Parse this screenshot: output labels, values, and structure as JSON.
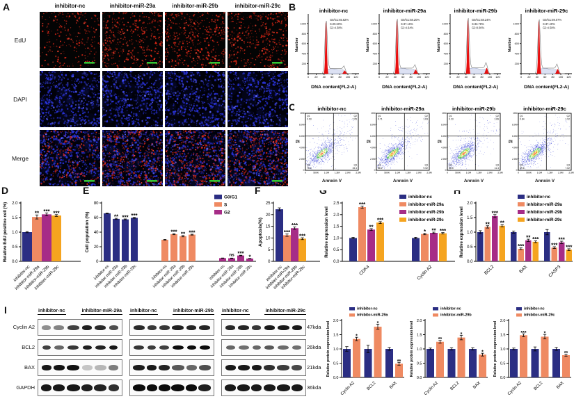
{
  "panels": {
    "a": "A",
    "b": "B",
    "c": "C",
    "d": "D",
    "e": "E",
    "f": "F",
    "g": "G",
    "h": "H",
    "i": "I"
  },
  "colors": {
    "navy": "#2b2e83",
    "salmon": "#ef8a62",
    "magenta": "#a62c87",
    "amber": "#f5a41f",
    "hist_red": "#e80f0f",
    "hist_s_fill": "#dce1f3",
    "edu_red": "#e02716",
    "dapi_blue": "#2a33dd",
    "scalebar_green": "#35c435"
  },
  "panelA": {
    "columns": [
      "inhibitor-nc",
      "inhibitor-miR-29a",
      "inhibitor-miR-29b",
      "inhibitor-miR-29c"
    ],
    "rows": [
      "EdU",
      "DAPI",
      "Merge"
    ],
    "edu_dot_counts": [
      260,
      430,
      480,
      430
    ],
    "dapi_dot_count": 520
  },
  "panelI": {
    "protein_labels": [
      "Cyclin A2",
      "BCL2",
      "BAX",
      "GAPDH"
    ],
    "kda_labels": [
      "47kda",
      "26kda",
      "21kda",
      "36kda"
    ],
    "groups": [
      {
        "nc_label": "inhibitor-nc",
        "treat_label": "inhibitor-miR-29a",
        "bands": [
          [
            0.45,
            0.5,
            0.78,
            0.92,
            0.88,
            0.72
          ],
          [
            0.78,
            0.62,
            0.82,
            0.92,
            0.9,
            0.95
          ],
          [
            0.95,
            0.97,
            0.98,
            0.22,
            0.28,
            0.52
          ],
          [
            0.95,
            0.95,
            0.95,
            0.92,
            0.9,
            0.85
          ]
        ]
      },
      {
        "nc_label": "inhibitor-nc",
        "treat_label": "inhibitor-miR-29b",
        "bands": [
          [
            0.88,
            0.82,
            0.82,
            0.92,
            0.9,
            0.9
          ],
          [
            0.82,
            0.8,
            0.78,
            1,
            1,
            1
          ],
          [
            0.92,
            0.95,
            0.9,
            0.68,
            0.62,
            0.72
          ],
          [
            1,
            1,
            1,
            1,
            1,
            0.92
          ]
        ]
      },
      {
        "nc_label": "inhibitor-nc",
        "treat_label": "inhibitor-miR-29c",
        "bands": [
          [
            0.88,
            0.9,
            0.82,
            0.95,
            0.95,
            0.95
          ],
          [
            0.62,
            0.58,
            0.62,
            0.68,
            0.6,
            0.58
          ],
          [
            0.95,
            0.95,
            0.95,
            0.85,
            0.8,
            0.75
          ],
          [
            0.95,
            0.95,
            0.95,
            0.95,
            0.95,
            0.95
          ]
        ]
      }
    ]
  },
  "chart_data": [
    {
      "id": "B",
      "type": "histogram-set",
      "ylabel": "Number",
      "xlabel": "DNA content(FL2-A)",
      "yticks": [
        0,
        200,
        400,
        600,
        800,
        1000
      ],
      "xticks": [
        0,
        20,
        40,
        60,
        80,
        100,
        120
      ],
      "plots": [
        {
          "title": "inhibitor-nc",
          "stats": [
            "G0/G1:65.82%",
            "S:29.60%",
            "G2:4.38%"
          ],
          "g1_peak": 0.9,
          "s_level": 0.075,
          "g2_peak": 0.055
        },
        {
          "title": "inhibitor-miR-29a",
          "stats": [
            "G0/G1:58.20%",
            "S:37.16%",
            "G2:4.64%"
          ],
          "g1_peak": 0.93,
          "s_level": 0.08,
          "g2_peak": 0.07
        },
        {
          "title": "inhibitor-miR-29b",
          "stats": [
            "G0/G1:58.24%",
            "S:33.78%",
            "G2:8.00%"
          ],
          "g1_peak": 0.94,
          "s_level": 0.085,
          "g2_peak": 0.1
        },
        {
          "title": "inhibitor-miR-29c",
          "stats": [
            "G0/G1:59.07%",
            "S:37.49%",
            "G2:4.58%"
          ],
          "g1_peak": 0.92,
          "s_level": 0.08,
          "g2_peak": 0.08
        }
      ]
    },
    {
      "id": "C",
      "type": "flow-set",
      "xlabel": "Annxin V",
      "ylabel": "PI",
      "ytick_labels": [
        "10M",
        "8.0M",
        "6.0M",
        "4.0M",
        "2.0M",
        "0"
      ],
      "xtick_labels": [
        "0",
        "500K",
        "1.0M",
        "1.5M",
        "2.0M",
        "2.5M"
      ],
      "plots": [
        {
          "title": "inhibitor-nc",
          "q1": "0.93",
          "q2": "7.05",
          "q3": "15.4",
          "q4": "76.4",
          "cloud": 0.34
        },
        {
          "title": "inhibitor-miR-29a",
          "q1": "0.71",
          "q2": "1.63",
          "q3": "9.52",
          "q4": "88.2",
          "cloud": 0.24
        },
        {
          "title": "inhibitor-miR-29b",
          "q1": "0.23",
          "q2": "1.89",
          "q3": "11.4",
          "q4": "86.5",
          "cloud": 0.24
        },
        {
          "title": "inhibitor-miR-29c",
          "q1": "0.84",
          "q2": "1.92",
          "q3": "7.62",
          "q4": "89.6",
          "cloud": 0.26
        }
      ]
    },
    {
      "id": "D",
      "type": "bar",
      "ylabel": "Relative EdU positive cell (%)",
      "ylim": [
        0,
        2.0
      ],
      "ystep": 0.5,
      "decimals": 1,
      "groups": [
        {
          "label": "inhibitor-nc",
          "bars": [
            {
              "v": 1.0,
              "e": 0.02,
              "c": "navy",
              "sig": ""
            }
          ]
        },
        {
          "label": "inhibitor-miR-29a",
          "bars": [
            {
              "v": 1.52,
              "e": 0.07,
              "c": "salmon",
              "sig": "**"
            }
          ]
        },
        {
          "label": "inhibitor-miR-29b",
          "bars": [
            {
              "v": 1.61,
              "e": 0.05,
              "c": "magenta",
              "sig": "***"
            }
          ]
        },
        {
          "label": "inhibitor-miR-29c",
          "bars": [
            {
              "v": 1.57,
              "e": 0.03,
              "c": "amber",
              "sig": "***"
            }
          ]
        }
      ]
    },
    {
      "id": "E",
      "type": "bar",
      "ylabel": "Cell population (%)",
      "ylim": [
        0,
        80
      ],
      "ystep": 20,
      "decimals": 0,
      "legend": [
        {
          "label": "G0/G1",
          "c": "navy"
        },
        {
          "label": "S",
          "c": "salmon"
        },
        {
          "label": "G2",
          "c": "magenta"
        }
      ],
      "groups": [
        {
          "label": "G0/G1",
          "bars": [
            {
              "xlabel": "inhibitor-nc",
              "v": 65.8,
              "e": 0.5,
              "c": "navy",
              "sig": ""
            },
            {
              "xlabel": "inhibitor-miR-29a",
              "v": 58.2,
              "e": 0.8,
              "c": "navy",
              "sig": "**"
            },
            {
              "xlabel": "inhibitor-miR-29b",
              "v": 57.5,
              "e": 0.6,
              "c": "navy",
              "sig": "***"
            },
            {
              "xlabel": "inhibitor-miR-29c",
              "v": 59.6,
              "e": 0.7,
              "c": "navy",
              "sig": "***"
            }
          ]
        },
        {
          "label": "S",
          "bars": [
            {
              "xlabel": "inhibitor-nc",
              "v": 29.6,
              "e": 0.5,
              "c": "salmon",
              "sig": ""
            },
            {
              "xlabel": "inhibitor-miR-29a",
              "v": 37.2,
              "e": 0.7,
              "c": "salmon",
              "sig": "***"
            },
            {
              "xlabel": "inhibitor-miR-29b",
              "v": 34.5,
              "e": 0.9,
              "c": "salmon",
              "sig": "**"
            },
            {
              "xlabel": "inhibitor-miR-29c",
              "v": 36.6,
              "e": 0.6,
              "c": "salmon",
              "sig": "***"
            }
          ]
        },
        {
          "label": "G2",
          "bars": [
            {
              "xlabel": "inhibitor-nc",
              "v": 4.4,
              "e": 0.2,
              "c": "magenta",
              "sig": ""
            },
            {
              "xlabel": "inhibitor-miR-29a",
              "v": 4.2,
              "e": 0.3,
              "c": "magenta",
              "sig": "ns"
            },
            {
              "xlabel": "inhibitor-miR-29b",
              "v": 8.0,
              "e": 0.4,
              "c": "magenta",
              "sig": "***"
            },
            {
              "xlabel": "inhibitor-miR-29c",
              "v": 3.8,
              "e": 0.2,
              "c": "magenta",
              "sig": "*"
            }
          ]
        }
      ]
    },
    {
      "id": "F",
      "type": "bar",
      "ylabel": "Apoptosis(%)",
      "ylim": [
        0,
        25
      ],
      "ystep": 5,
      "decimals": 0,
      "groups": [
        {
          "label": "inhibitor-nc",
          "bars": [
            {
              "v": 22.3,
              "e": 0.6,
              "c": "navy",
              "sig": ""
            }
          ]
        },
        {
          "label": "inhibitor-miR-29a",
          "bars": [
            {
              "v": 11.2,
              "e": 0.5,
              "c": "salmon",
              "sig": "***"
            }
          ]
        },
        {
          "label": "inhibitor-miR-29b",
          "bars": [
            {
              "v": 14.2,
              "e": 0.5,
              "c": "magenta",
              "sig": "***"
            }
          ]
        },
        {
          "label": "inhibitor-miR-29c",
          "bars": [
            {
              "v": 9.7,
              "e": 0.4,
              "c": "amber",
              "sig": "***"
            }
          ]
        }
      ]
    },
    {
      "id": "G",
      "type": "bar",
      "ylabel": "Relative expression level",
      "ylim": [
        0,
        2.5
      ],
      "ystep": 0.5,
      "decimals": 1,
      "legend": [
        {
          "label": "inhibitor-nc",
          "c": "navy"
        },
        {
          "label": "inhibitor-miR-29a",
          "c": "salmon"
        },
        {
          "label": "inhibitor-miR-29b",
          "c": "magenta"
        },
        {
          "label": "inhibitor-miR-29c",
          "c": "amber"
        }
      ],
      "groups": [
        {
          "label": "CDK4",
          "bars": [
            {
              "v": 1.0,
              "e": 0.03,
              "c": "navy",
              "sig": ""
            },
            {
              "v": 2.32,
              "e": 0.05,
              "c": "salmon",
              "sig": "***"
            },
            {
              "v": 1.36,
              "e": 0.04,
              "c": "magenta",
              "sig": "**"
            },
            {
              "v": 1.66,
              "e": 0.04,
              "c": "amber",
              "sig": "***"
            }
          ]
        },
        {
          "label": "Cyclin A2",
          "bars": [
            {
              "v": 1.0,
              "e": 0.03,
              "c": "navy",
              "sig": ""
            },
            {
              "v": 1.17,
              "e": 0.03,
              "c": "salmon",
              "sig": "*"
            },
            {
              "v": 1.22,
              "e": 0.03,
              "c": "magenta",
              "sig": "**"
            },
            {
              "v": 1.2,
              "e": 0.03,
              "c": "amber",
              "sig": "***"
            }
          ]
        }
      ]
    },
    {
      "id": "H",
      "type": "bar",
      "ylabel": "Relative expression level",
      "ylim": [
        0,
        2.0
      ],
      "ystep": 0.5,
      "decimals": 1,
      "legend": [
        {
          "label": "inhibitor-nc",
          "c": "navy"
        },
        {
          "label": "inhibitor-miR-29a",
          "c": "salmon"
        },
        {
          "label": "inhibitor-miR-29b",
          "c": "magenta"
        },
        {
          "label": "inhibitor-miR-29c",
          "c": "amber"
        }
      ],
      "groups": [
        {
          "label": "BCL2",
          "bars": [
            {
              "v": 1.0,
              "e": 0.05,
              "c": "navy",
              "sig": ""
            },
            {
              "v": 1.18,
              "e": 0.04,
              "c": "salmon",
              "sig": "**"
            },
            {
              "v": 1.55,
              "e": 0.05,
              "c": "magenta",
              "sig": "***"
            },
            {
              "v": 1.22,
              "e": 0.04,
              "c": "amber",
              "sig": "**"
            }
          ]
        },
        {
          "label": "BAX",
          "bars": [
            {
              "v": 1.0,
              "e": 0.04,
              "c": "navy",
              "sig": ""
            },
            {
              "v": 0.43,
              "e": 0.03,
              "c": "salmon",
              "sig": "***"
            },
            {
              "v": 0.72,
              "e": 0.04,
              "c": "magenta",
              "sig": "**"
            },
            {
              "v": 0.67,
              "e": 0.03,
              "c": "amber",
              "sig": "***"
            }
          ]
        },
        {
          "label": "CASP3",
          "bars": [
            {
              "v": 1.0,
              "e": 0.09,
              "c": "navy",
              "sig": ""
            },
            {
              "v": 0.47,
              "e": 0.03,
              "c": "salmon",
              "sig": "***"
            },
            {
              "v": 0.65,
              "e": 0.04,
              "c": "magenta",
              "sig": "***"
            },
            {
              "v": 0.4,
              "e": 0.03,
              "c": "amber",
              "sig": "***"
            }
          ]
        }
      ]
    },
    {
      "id": "I1",
      "type": "bar",
      "ylabel": "Relative protein expression level",
      "ylim": [
        0,
        2.0
      ],
      "ystep": 0.5,
      "decimals": 1,
      "legend": [
        {
          "label": "inhibitor-nc",
          "c": "navy"
        },
        {
          "label": "inhibitor-miR-29a",
          "c": "salmon"
        }
      ],
      "groups": [
        {
          "label": "Cyclin A2",
          "bars": [
            {
              "v": 1.0,
              "e": 0.08,
              "c": "navy",
              "sig": ""
            },
            {
              "v": 1.35,
              "e": 0.06,
              "c": "salmon",
              "sig": "*"
            }
          ]
        },
        {
          "label": "BCL2",
          "bars": [
            {
              "v": 1.0,
              "e": 0.13,
              "c": "navy",
              "sig": ""
            },
            {
              "v": 1.78,
              "e": 0.09,
              "c": "salmon",
              "sig": "*"
            }
          ]
        },
        {
          "label": "BAX",
          "bars": [
            {
              "v": 1.0,
              "e": 0.05,
              "c": "navy",
              "sig": ""
            },
            {
              "v": 0.48,
              "e": 0.05,
              "c": "salmon",
              "sig": "**"
            }
          ]
        }
      ]
    },
    {
      "id": "I2",
      "type": "bar",
      "ylabel": "Relative protein expression level",
      "ylim": [
        0,
        2.0
      ],
      "ystep": 0.5,
      "decimals": 1,
      "legend": [
        {
          "label": "inhibitor-nc",
          "c": "navy"
        },
        {
          "label": "inhibitor-miR-29b",
          "c": "salmon"
        }
      ],
      "groups": [
        {
          "label": "Cyclin A2",
          "bars": [
            {
              "v": 1.0,
              "e": 0.03,
              "c": "navy",
              "sig": ""
            },
            {
              "v": 1.25,
              "e": 0.05,
              "c": "salmon",
              "sig": "**"
            }
          ]
        },
        {
          "label": "BCL2",
          "bars": [
            {
              "v": 1.0,
              "e": 0.04,
              "c": "navy",
              "sig": ""
            },
            {
              "v": 1.4,
              "e": 0.08,
              "c": "salmon",
              "sig": "*"
            }
          ]
        },
        {
          "label": "BAX",
          "bars": [
            {
              "v": 1.0,
              "e": 0.04,
              "c": "navy",
              "sig": ""
            },
            {
              "v": 0.8,
              "e": 0.05,
              "c": "salmon",
              "sig": "*"
            }
          ]
        }
      ]
    },
    {
      "id": "I3",
      "type": "bar",
      "ylabel": "Relative protein expression level",
      "ylim": [
        0,
        2.0
      ],
      "ystep": 0.5,
      "decimals": 1,
      "legend": [
        {
          "label": "inhibitor-nc",
          "c": "navy"
        },
        {
          "label": "inhibitor-miR-29c",
          "c": "salmon"
        }
      ],
      "groups": [
        {
          "label": "Cyclin A2",
          "bars": [
            {
              "v": 1.0,
              "e": 0.03,
              "c": "navy",
              "sig": ""
            },
            {
              "v": 1.48,
              "e": 0.05,
              "c": "salmon",
              "sig": "***"
            }
          ]
        },
        {
          "label": "BCL2",
          "bars": [
            {
              "v": 1.0,
              "e": 0.07,
              "c": "navy",
              "sig": ""
            },
            {
              "v": 1.43,
              "e": 0.08,
              "c": "salmon",
              "sig": "*"
            }
          ]
        },
        {
          "label": "BAX",
          "bars": [
            {
              "v": 1.0,
              "e": 0.05,
              "c": "navy",
              "sig": ""
            },
            {
              "v": 0.78,
              "e": 0.04,
              "c": "salmon",
              "sig": "**"
            }
          ]
        }
      ]
    }
  ]
}
